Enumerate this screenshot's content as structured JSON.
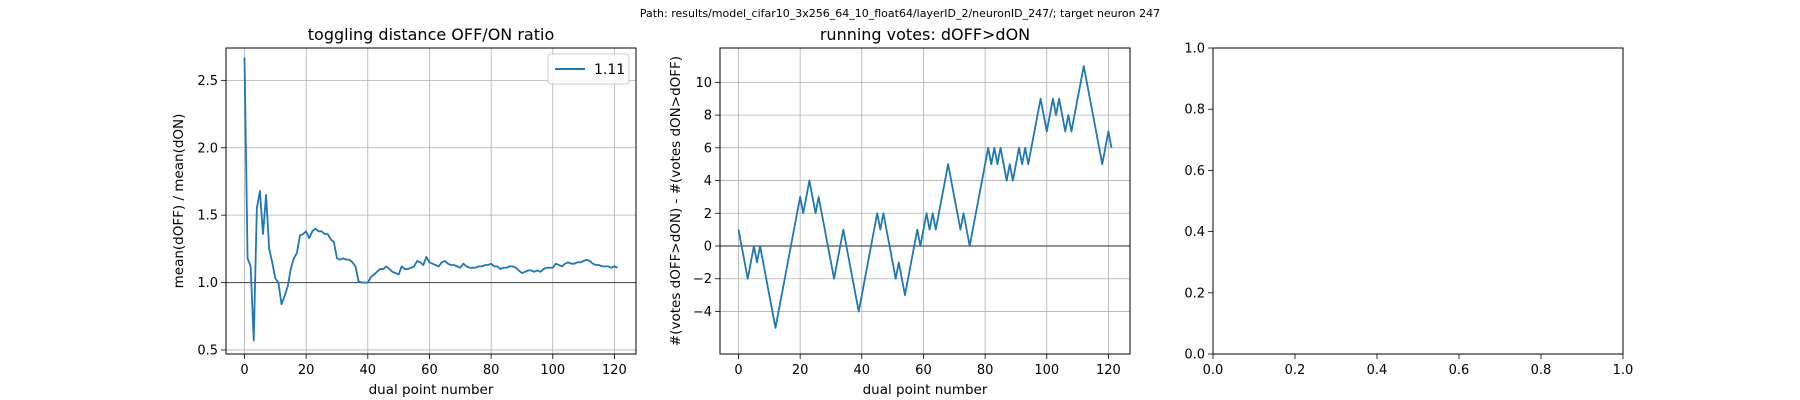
{
  "figure": {
    "suptitle": "Path: results/model_cifar10_3x256_64_10_float64/layerID_2/neuronID_247/; target neuron 247"
  },
  "chart_data": [
    {
      "type": "line",
      "title": "toggling distance OFF/ON ratio",
      "xlabel": "dual point number",
      "ylabel": "mean(dOFF) / mean(dON)",
      "xlim": [
        -6,
        127
      ],
      "ylim": [
        0.47,
        2.74
      ],
      "xticks": [
        0,
        20,
        40,
        60,
        80,
        100,
        120
      ],
      "yticks": [
        0.5,
        1.0,
        1.5,
        2.0,
        2.5
      ],
      "ytick_labels": [
        "0.5",
        "1.0",
        "1.5",
        "2.0",
        "2.5"
      ],
      "grid": true,
      "hline": 1.0,
      "legend": {
        "position": "upper right",
        "entries": [
          "1.11"
        ]
      },
      "series": [
        {
          "name": "1.11",
          "color": "#1f77b4",
          "x": [
            0,
            1,
            2,
            3,
            4,
            5,
            6,
            7,
            8,
            9,
            10,
            11,
            12,
            13,
            14,
            15,
            16,
            17,
            18,
            19,
            20,
            21,
            22,
            23,
            24,
            25,
            26,
            27,
            28,
            29,
            30,
            31,
            32,
            33,
            34,
            35,
            36,
            37,
            38,
            39,
            40,
            41,
            42,
            43,
            44,
            45,
            46,
            47,
            48,
            49,
            50,
            51,
            52,
            53,
            54,
            55,
            56,
            57,
            58,
            59,
            60,
            61,
            62,
            63,
            64,
            65,
            66,
            67,
            68,
            69,
            70,
            71,
            72,
            73,
            74,
            75,
            76,
            77,
            78,
            79,
            80,
            81,
            82,
            83,
            84,
            85,
            86,
            87,
            88,
            89,
            90,
            91,
            92,
            93,
            94,
            95,
            96,
            97,
            98,
            99,
            100,
            101,
            102,
            103,
            104,
            105,
            106,
            107,
            108,
            109,
            110,
            111,
            112,
            113,
            114,
            115,
            116,
            117,
            118,
            119,
            120,
            121
          ],
          "values": [
            2.67,
            1.18,
            1.12,
            0.57,
            1.55,
            1.68,
            1.36,
            1.65,
            1.25,
            1.15,
            1.03,
            1.0,
            0.84,
            0.9,
            0.97,
            1.1,
            1.18,
            1.22,
            1.35,
            1.36,
            1.38,
            1.33,
            1.38,
            1.4,
            1.38,
            1.38,
            1.36,
            1.36,
            1.32,
            1.3,
            1.18,
            1.17,
            1.18,
            1.17,
            1.17,
            1.15,
            1.12,
            1.01,
            1.0,
            1.0,
            1.0,
            1.04,
            1.06,
            1.08,
            1.1,
            1.1,
            1.12,
            1.1,
            1.08,
            1.07,
            1.06,
            1.12,
            1.1,
            1.1,
            1.11,
            1.12,
            1.16,
            1.15,
            1.13,
            1.19,
            1.15,
            1.14,
            1.13,
            1.12,
            1.15,
            1.16,
            1.14,
            1.13,
            1.13,
            1.12,
            1.11,
            1.14,
            1.12,
            1.11,
            1.11,
            1.11,
            1.12,
            1.12,
            1.13,
            1.13,
            1.14,
            1.12,
            1.12,
            1.1,
            1.11,
            1.11,
            1.12,
            1.12,
            1.11,
            1.09,
            1.07,
            1.08,
            1.09,
            1.09,
            1.08,
            1.09,
            1.08,
            1.1,
            1.11,
            1.11,
            1.11,
            1.14,
            1.13,
            1.12,
            1.14,
            1.15,
            1.14,
            1.14,
            1.15,
            1.15,
            1.16,
            1.17,
            1.16,
            1.14,
            1.13,
            1.13,
            1.12,
            1.12,
            1.12,
            1.11,
            1.12,
            1.11
          ]
        }
      ]
    },
    {
      "type": "line",
      "title": "running votes: dOFF>dON",
      "xlabel": "dual point number",
      "ylabel": "#(votes dOFF>dON) - #(votes dON>dOFF)",
      "xlim": [
        -6,
        127
      ],
      "ylim": [
        -6.6,
        12.1
      ],
      "xticks": [
        0,
        20,
        40,
        60,
        80,
        100,
        120
      ],
      "yticks": [
        -4,
        -2,
        0,
        2,
        4,
        6,
        8,
        10
      ],
      "ytick_labels": [
        "−4",
        "−2",
        "0",
        "2",
        "4",
        "6",
        "8",
        "10"
      ],
      "grid": true,
      "hline": 0,
      "series": [
        {
          "color": "#1f77b4",
          "x": [
            0,
            1,
            2,
            3,
            4,
            5,
            6,
            7,
            8,
            9,
            10,
            11,
            12,
            13,
            14,
            15,
            16,
            17,
            18,
            19,
            20,
            21,
            22,
            23,
            24,
            25,
            26,
            27,
            28,
            29,
            30,
            31,
            32,
            33,
            34,
            35,
            36,
            37,
            38,
            39,
            40,
            41,
            42,
            43,
            44,
            45,
            46,
            47,
            48,
            49,
            50,
            51,
            52,
            53,
            54,
            55,
            56,
            57,
            58,
            59,
            60,
            61,
            62,
            63,
            64,
            65,
            66,
            67,
            68,
            69,
            70,
            71,
            72,
            73,
            74,
            75,
            76,
            77,
            78,
            79,
            80,
            81,
            82,
            83,
            84,
            85,
            86,
            87,
            88,
            89,
            90,
            91,
            92,
            93,
            94,
            95,
            96,
            97,
            98,
            99,
            100,
            101,
            102,
            103,
            104,
            105,
            106,
            107,
            108,
            109,
            110,
            111,
            112,
            113,
            114,
            115,
            116,
            117,
            118,
            119,
            120,
            121
          ],
          "values": [
            1,
            0,
            -1,
            -2,
            -1,
            0,
            -1,
            0,
            -1,
            -2,
            -3,
            -4,
            -5,
            -4,
            -3,
            -2,
            -1,
            0,
            1,
            2,
            3,
            2,
            3,
            4,
            3,
            2,
            3,
            2,
            1,
            0,
            -1,
            -2,
            -1,
            0,
            1,
            0,
            -1,
            -2,
            -3,
            -4,
            -3,
            -2,
            -1,
            0,
            1,
            2,
            1,
            2,
            1,
            0,
            -1,
            -2,
            -1,
            -2,
            -3,
            -2,
            -1,
            0,
            1,
            0,
            1,
            2,
            1,
            2,
            1,
            2,
            3,
            4,
            5,
            4,
            3,
            2,
            1,
            2,
            1,
            0,
            1,
            2,
            3,
            4,
            5,
            6,
            5,
            6,
            5,
            6,
            5,
            4,
            5,
            4,
            5,
            6,
            5,
            6,
            5,
            6,
            7,
            8,
            9,
            8,
            7,
            8,
            9,
            8,
            9,
            8,
            7,
            8,
            7,
            8,
            9,
            10,
            11,
            10,
            9,
            8,
            7,
            6,
            5,
            6,
            7,
            6
          ]
        }
      ]
    },
    {
      "type": "line",
      "title": "",
      "xlabel": "",
      "ylabel": "",
      "xlim": [
        0,
        1
      ],
      "ylim": [
        0,
        1
      ],
      "xticks": [
        0.0,
        0.2,
        0.4,
        0.6,
        0.8,
        1.0
      ],
      "xtick_labels": [
        "0.0",
        "0.2",
        "0.4",
        "0.6",
        "0.8",
        "1.0"
      ],
      "yticks": [
        0.0,
        0.2,
        0.4,
        0.6,
        0.8,
        1.0
      ],
      "ytick_labels": [
        "0.0",
        "0.2",
        "0.4",
        "0.6",
        "0.8",
        "1.0"
      ],
      "grid": false,
      "series": []
    }
  ]
}
